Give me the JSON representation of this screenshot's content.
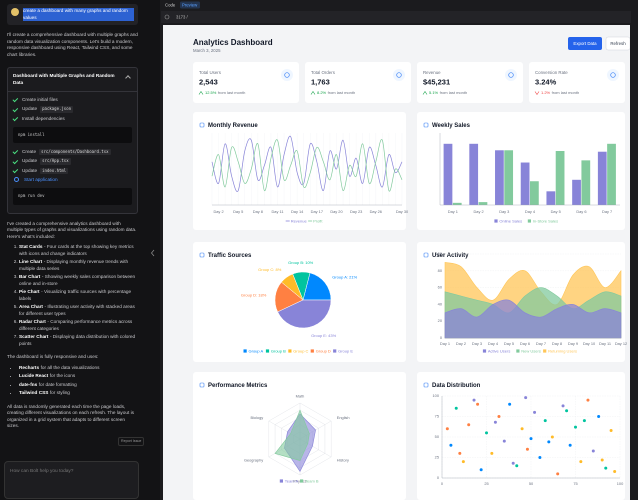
{
  "chat": {
    "user_message": "create a dashboard with many graphs and random values",
    "intro": "I'll create a comprehensive dashboard with multiple graphs and random data visualization components. Let's build a modern, responsive dashboard using React, Tailwind CSS, and some chart libraries.",
    "artifact": {
      "title": "Dashboard with Multiple Graphs and Random Data",
      "steps": [
        {
          "text": "Create initial files"
        },
        {
          "text": "Update",
          "code": "package.json"
        },
        {
          "text": "Install dependencies"
        },
        {
          "command": "npm install"
        },
        {
          "text": "Create",
          "code": "src/components/Dashboard.tsx"
        },
        {
          "text": "Update",
          "code": "src/App.tsx"
        },
        {
          "text": "Update",
          "code": "index.html"
        },
        {
          "text": "Start application",
          "active": true
        },
        {
          "command": "npm run dev"
        }
      ]
    },
    "summary": "I've created a comprehensive analytics dashboard with multiple types of graphs and visualizations using random data. Here's what's included:",
    "features": [
      {
        "name": "Stat Cards",
        "desc": "- Four cards at the top showing key metrics with icons and change indicators"
      },
      {
        "name": "Line Chart",
        "desc": "- Displaying monthly revenue trends with multiple data series"
      },
      {
        "name": "Bar Chart",
        "desc": "- Showing weekly sales comparison between online and in-store"
      },
      {
        "name": "Pie Chart",
        "desc": "- Visualizing traffic sources with percentage labels"
      },
      {
        "name": "Area Chart",
        "desc": "- Illustrating user activity with stacked areas for different user types"
      },
      {
        "name": "Radar Chart",
        "desc": "- Comparing performance metrics across different categories"
      },
      {
        "name": "Scatter Chart",
        "desc": "- Displaying data distribution with colored points"
      }
    ],
    "uses_intro": "The dashboard is fully responsive and uses:",
    "uses": [
      {
        "name": "Recharts",
        "desc": "for all the data visualizations"
      },
      {
        "name": "Lucide React",
        "desc": "for the icons"
      },
      {
        "name": "date-fns",
        "desc": "for date formatting"
      },
      {
        "name": "Tailwind CSS",
        "desc": "for styling"
      }
    ],
    "closing": "All data is randomly generated each time the page loads, creating different visualizations on each refresh. The layout is organized in a grid system that adapts to different screen sizes.",
    "report": "Report Issue",
    "input_placeholder": "How can Bolt help you today?"
  },
  "preview": {
    "tabs": [
      "Code",
      "Preview"
    ],
    "address": "3173 /"
  },
  "dashboard": {
    "title": "Analytics Dashboard",
    "date": "March 3, 2025",
    "buttons": [
      "Export Data",
      "Refresh"
    ],
    "stats": [
      {
        "label": "Total Users",
        "value": "2,543",
        "change": "12.5%",
        "trend": "up",
        "note": "from last month"
      },
      {
        "label": "Total Orders",
        "value": "1,763",
        "change": "8.2%",
        "trend": "up",
        "note": "from last month"
      },
      {
        "label": "Revenue",
        "value": "$45,231",
        "change": "5.1%",
        "trend": "up",
        "note": "from last month"
      },
      {
        "label": "Conversion Rate",
        "value": "3.24%",
        "change": "1.2%",
        "trend": "down",
        "note": "from last month"
      }
    ]
  },
  "chart_data": [
    {
      "type": "line",
      "title": "Monthly Revenue",
      "categories": [
        null,
        "Day 2",
        null,
        null,
        "Day 5",
        null,
        null,
        "Day 8",
        null,
        null,
        "Day 11",
        null,
        null,
        "Day 14",
        null,
        null,
        "Day 17",
        null,
        null,
        "Day 20",
        null,
        null,
        "Day 23",
        null,
        null,
        "Day 26",
        null,
        null,
        null,
        "Day 30"
      ],
      "series": [
        {
          "name": "Revenue",
          "color": "#8884d8",
          "values": [
            60,
            30,
            85,
            40,
            20,
            75,
            90,
            35,
            55,
            80,
            25,
            70,
            95,
            45,
            30,
            85,
            60,
            20,
            75,
            50,
            90,
            40,
            65,
            30,
            80,
            55,
            25,
            70,
            45,
            60
          ]
        },
        {
          "name": "Profit",
          "color": "#82ca9d",
          "values": [
            40,
            70,
            25,
            80,
            60,
            30,
            50,
            85,
            20,
            65,
            90,
            35,
            55,
            75,
            25,
            45,
            80,
            60,
            35,
            70,
            20,
            55,
            40,
            85,
            30,
            60,
            90,
            20,
            50,
            35
          ]
        }
      ],
      "ylim": [
        0,
        100
      ]
    },
    {
      "type": "bar",
      "title": "Weekly Sales",
      "categories": [
        "Day 1",
        "Day 2",
        "Day 3",
        "Day 4",
        "Day 5",
        "Day 6",
        "Day 7"
      ],
      "series": [
        {
          "name": "Online Sales",
          "color": "#8884d8",
          "values": [
            850,
            850,
            760,
            590,
            190,
            350,
            740
          ]
        },
        {
          "name": "In-Store Sales",
          "color": "#82ca9d",
          "values": [
            30,
            40,
            760,
            330,
            750,
            620,
            850
          ]
        }
      ],
      "ylim": [
        0,
        1000
      ]
    },
    {
      "type": "pie",
      "title": "Traffic Sources",
      "categories": [
        "Group A",
        "Group B",
        "Group C",
        "Group D",
        "Group E"
      ],
      "values": [
        21,
        10,
        8,
        18,
        43
      ],
      "value_labels": [
        "Group A: 21%",
        "Group B: 10%",
        "Group C: 8%",
        "Group D: 18%",
        "Group E: 43%"
      ],
      "colors": [
        "#0088FE",
        "#00C49F",
        "#FFBB28",
        "#FF8042",
        "#8884d8"
      ]
    },
    {
      "type": "area",
      "title": "User Activity",
      "categories": [
        "Day 1",
        "Day 2",
        "Day 3",
        "Day 4",
        "Day 5",
        "Day 6",
        "Day 7",
        "Day 8",
        "Day 9",
        "Day 10",
        "Day 11",
        "Day 12"
      ],
      "series": [
        {
          "name": "Active Users",
          "color": "#8884d8",
          "values": [
            30,
            35,
            25,
            40,
            45,
            30,
            25,
            35,
            40,
            30,
            35,
            30
          ]
        },
        {
          "name": "New Users",
          "color": "#82ca9d",
          "values": [
            55,
            50,
            45,
            40,
            30,
            50,
            60,
            50,
            35,
            45,
            55,
            50
          ]
        },
        {
          "name": "Returning Users",
          "color": "#ffc658",
          "values": [
            90,
            85,
            60,
            45,
            70,
            80,
            55,
            40,
            75,
            85,
            60,
            80
          ]
        }
      ],
      "ylim": [
        0,
        100
      ],
      "yticks": [
        0,
        20,
        40,
        60,
        80,
        100
      ],
      "grid": true
    },
    {
      "type": "radar",
      "title": "Performance Metrics",
      "categories": [
        "Math",
        "English",
        "History",
        "Physics",
        "Geography",
        "Biology"
      ],
      "series": [
        {
          "name": "Team A",
          "color": "#8884d8",
          "values": [
            70,
            50,
            40,
            90,
            50,
            40
          ]
        },
        {
          "name": "Team B",
          "color": "#82ca9d",
          "values": [
            80,
            30,
            25,
            60,
            80,
            30
          ]
        }
      ],
      "rlim": [
        0,
        100
      ]
    },
    {
      "type": "scatter",
      "title": "Data Distribution",
      "x": [
        5,
        8,
        12,
        15,
        18,
        22,
        25,
        28,
        32,
        35,
        38,
        42,
        45,
        48,
        52,
        55,
        58,
        62,
        65,
        68,
        72,
        75,
        78,
        82,
        85,
        88,
        92,
        95,
        10,
        30,
        50,
        70,
        90,
        20,
        40,
        60,
        80,
        97,
        3,
        47
      ],
      "values": [
        40,
        85,
        20,
        65,
        95,
        10,
        55,
        30,
        75,
        45,
        90,
        15,
        60,
        35,
        80,
        25,
        70,
        50,
        5,
        88,
        40,
        62,
        20,
        95,
        33,
        75,
        12,
        58,
        30,
        68,
        48,
        82,
        22,
        90,
        18,
        44,
        70,
        8,
        60,
        98
      ],
      "colors": [
        "#0088FE",
        "#00C49F",
        "#FFBB28",
        "#FF8042",
        "#8884d8"
      ],
      "xlim": [
        0,
        100
      ],
      "ylim": [
        0,
        100
      ],
      "xticks": [
        0,
        25,
        50,
        75,
        100
      ],
      "yticks": [
        0,
        25,
        50,
        75,
        100
      ],
      "grid": true
    }
  ]
}
